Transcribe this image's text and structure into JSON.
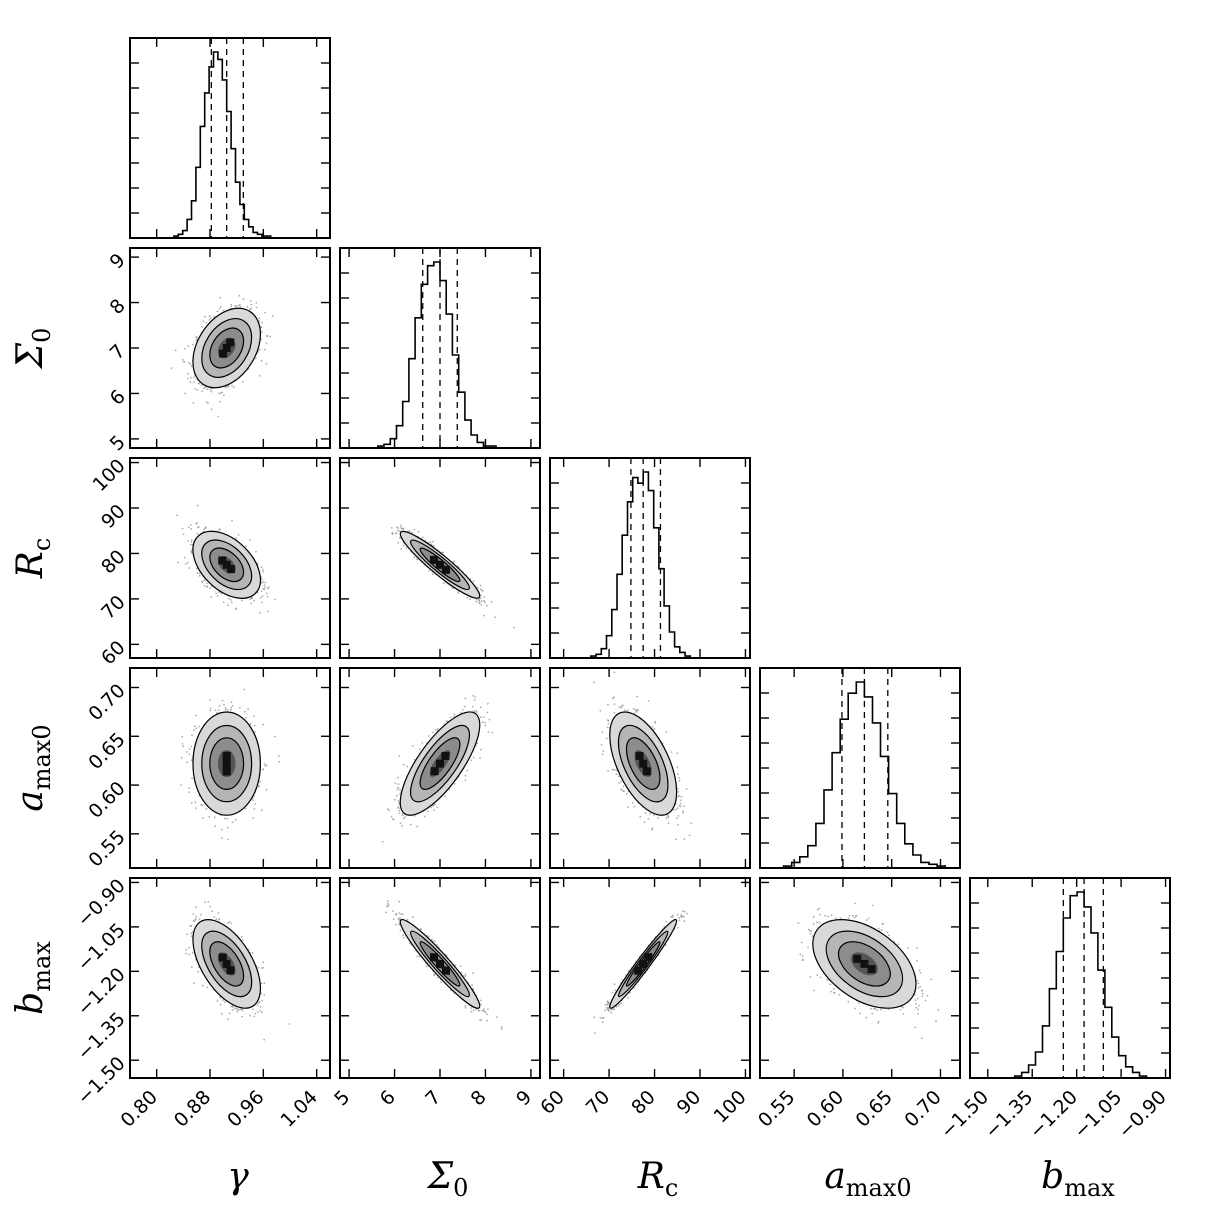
{
  "chart_data": {
    "type": "corner",
    "parameters": [
      {
        "symbol": "γ",
        "sub": "",
        "range": [
          0.76,
          1.06
        ],
        "ticks": [
          0.8,
          0.88,
          0.96,
          1.04
        ],
        "tick_labels": [
          "0.80",
          "0.88",
          "0.96",
          "1.04"
        ],
        "median": 0.905,
        "q16": 0.882,
        "q84": 0.93,
        "sigma": 0.022
      },
      {
        "symbol": "Σ",
        "sub": "0",
        "range": [
          4.8,
          9.2
        ],
        "ticks": [
          5,
          6,
          7,
          8,
          9
        ],
        "tick_labels": [
          "5",
          "6",
          "7",
          "8",
          "9"
        ],
        "median": 7.0,
        "q16": 6.62,
        "q84": 7.38,
        "sigma": 0.38
      },
      {
        "symbol": "R",
        "sub": "c",
        "range": [
          57,
          101
        ],
        "ticks": [
          60,
          70,
          80,
          90,
          100
        ],
        "tick_labels": [
          "60",
          "70",
          "80",
          "90",
          "100"
        ],
        "median": 77.5,
        "q16": 74.8,
        "q84": 81.3,
        "sigma": 3.2
      },
      {
        "symbol": "a",
        "sub": "max0",
        "range": [
          0.515,
          0.72
        ],
        "ticks": [
          0.55,
          0.6,
          0.65,
          0.7
        ],
        "tick_labels": [
          "0.55",
          "0.60",
          "0.65",
          "0.70"
        ],
        "median": 0.622,
        "q16": 0.599,
        "q84": 0.646,
        "sigma": 0.023
      },
      {
        "symbol": "b",
        "sub": "max",
        "range": [
          -1.56,
          -0.885
        ],
        "ticks": [
          -1.5,
          -1.35,
          -1.2,
          -1.05,
          -0.9
        ],
        "tick_labels": [
          "−1.50",
          "−1.35",
          "−1.20",
          "−1.05",
          "−0.90"
        ],
        "median": -1.175,
        "q16": -1.245,
        "q84": -1.11,
        "sigma": 0.065
      }
    ],
    "correlations": [
      [
        1.0,
        0.35,
        -0.45,
        0.0,
        -0.55
      ],
      [
        0.35,
        1.0,
        -0.93,
        0.75,
        -0.95
      ],
      [
        -0.45,
        -0.93,
        1.0,
        -0.55,
        0.97
      ],
      [
        0.0,
        0.75,
        -0.55,
        1.0,
        -0.45
      ],
      [
        -0.55,
        -0.95,
        0.97,
        -0.45,
        1.0
      ]
    ],
    "histograms": [
      [
        1,
        2,
        4,
        10,
        20,
        38,
        60,
        78,
        92,
        100,
        96,
        85,
        68,
        48,
        30,
        18,
        10,
        6,
        3,
        2,
        1,
        1,
        0,
        0
      ],
      [
        1,
        2,
        5,
        12,
        25,
        48,
        70,
        88,
        98,
        100,
        90,
        72,
        50,
        30,
        15,
        7,
        3,
        1,
        1,
        0
      ],
      [
        1,
        2,
        5,
        12,
        26,
        45,
        66,
        84,
        97,
        94,
        100,
        90,
        70,
        48,
        28,
        14,
        6,
        3,
        1,
        0
      ],
      [
        1,
        3,
        6,
        12,
        24,
        42,
        62,
        80,
        94,
        100,
        92,
        78,
        60,
        40,
        24,
        13,
        7,
        3,
        2,
        1
      ],
      [
        1,
        3,
        7,
        14,
        28,
        48,
        68,
        86,
        98,
        100,
        92,
        78,
        58,
        38,
        22,
        12,
        6,
        3,
        1,
        0
      ]
    ],
    "quantile_lines": "dashed",
    "contours": "filled 2D histogram with contour levels and scatter points outside"
  }
}
